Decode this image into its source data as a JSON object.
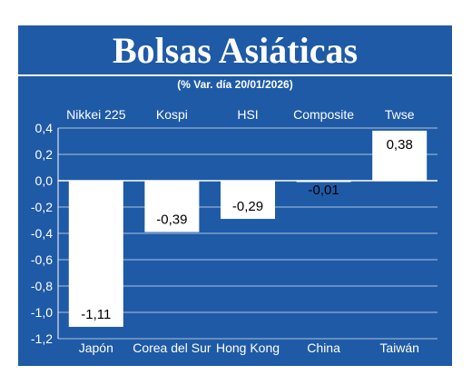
{
  "title": "Bolsas Asiáticas",
  "subtitle": "(% Var. día  20/01/2026)",
  "colors": {
    "background": "#1f5aa6",
    "bar": "#ffffff",
    "text": "#ffffff",
    "label_text": "#000000"
  },
  "chart_data": {
    "type": "bar",
    "title": "Bolsas Asiáticas",
    "subtitle": "(% Var. día  20/01/2026)",
    "indices": [
      "Nikkei 225",
      "Kospi",
      "HSI",
      "Composite",
      "Twse"
    ],
    "categories": [
      "Japón",
      "Corea del Sur",
      "Hong Kong",
      "China",
      "Taiwán"
    ],
    "values": [
      -1.11,
      -0.39,
      -0.29,
      -0.01,
      0.38
    ],
    "value_labels": [
      "-1,11",
      "-0,39",
      "-0,29",
      "-0,01",
      "0,38"
    ],
    "ylim": [
      -1.2,
      0.4
    ],
    "yticks": [
      0.4,
      0.2,
      0.0,
      -0.2,
      -0.4,
      -0.6,
      -0.8,
      -1.0,
      -1.2
    ],
    "ytick_labels": [
      "0,4",
      "0,2",
      "0,0",
      "-0,2",
      "-0,4",
      "-0,6",
      "-0,8",
      "-1,0",
      "-1,2"
    ],
    "grid": "horizontal"
  }
}
